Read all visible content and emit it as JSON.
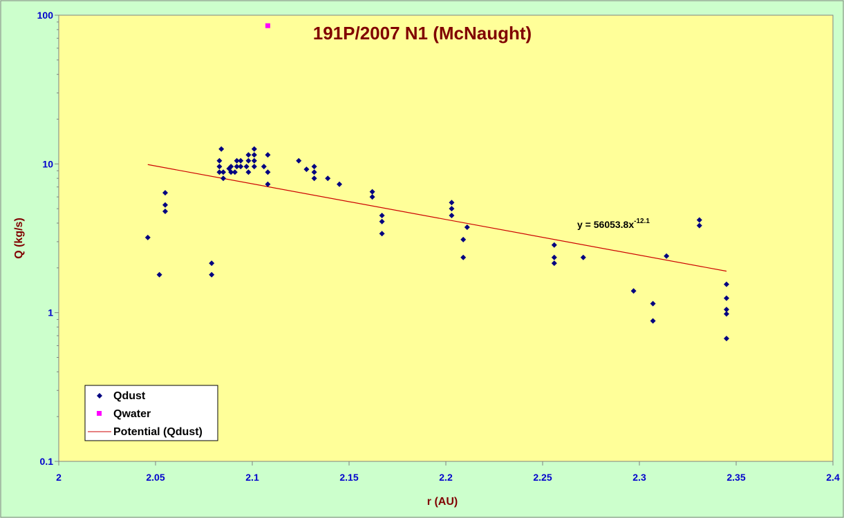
{
  "chart_data": {
    "type": "scatter",
    "title": "191P/2007 N1 (McNaught)",
    "xlabel": "r (AU)",
    "ylabel": "Q (kg/s)",
    "xlim": [
      2,
      2.4
    ],
    "ylim": [
      0.1,
      100
    ],
    "yscale": "log",
    "x_ticks": [
      "2",
      "2.05",
      "2.1",
      "2.15",
      "2.2",
      "2.25",
      "2.3",
      "2.35",
      "2.4"
    ],
    "y_ticks": [
      "0.1",
      "1",
      "10",
      "100"
    ],
    "grid": false,
    "legend_position": "bottom-left",
    "colors": {
      "plot_bg": "#ffff99",
      "page_bg": "#ccffcc",
      "qdust": "#000080",
      "qwater": "#ff00ff",
      "trend": "#cc0000"
    },
    "series": [
      {
        "name": "Qdust",
        "marker": "diamond",
        "points": [
          [
            2.046,
            3.2
          ],
          [
            2.052,
            1.8
          ],
          [
            2.055,
            6.4
          ],
          [
            2.055,
            5.3
          ],
          [
            2.055,
            4.8
          ],
          [
            2.079,
            2.15
          ],
          [
            2.079,
            1.8
          ],
          [
            2.083,
            10.5
          ],
          [
            2.083,
            9.6
          ],
          [
            2.083,
            8.8
          ],
          [
            2.084,
            12.6
          ],
          [
            2.085,
            8.8
          ],
          [
            2.085,
            8.0
          ],
          [
            2.088,
            9.3
          ],
          [
            2.089,
            9.6
          ],
          [
            2.089,
            8.8
          ],
          [
            2.091,
            8.8
          ],
          [
            2.092,
            10.5
          ],
          [
            2.092,
            9.6
          ],
          [
            2.094,
            10.5
          ],
          [
            2.094,
            9.6
          ],
          [
            2.097,
            9.6
          ],
          [
            2.098,
            11.5
          ],
          [
            2.098,
            10.5
          ],
          [
            2.098,
            8.8
          ],
          [
            2.101,
            12.6
          ],
          [
            2.101,
            11.5
          ],
          [
            2.101,
            10.5
          ],
          [
            2.101,
            9.6
          ],
          [
            2.106,
            9.6
          ],
          [
            2.108,
            11.5
          ],
          [
            2.108,
            8.8
          ],
          [
            2.108,
            7.3
          ],
          [
            2.124,
            10.5
          ],
          [
            2.128,
            9.2
          ],
          [
            2.132,
            9.6
          ],
          [
            2.132,
            8.8
          ],
          [
            2.132,
            8.0
          ],
          [
            2.139,
            8.0
          ],
          [
            2.145,
            7.3
          ],
          [
            2.162,
            6.5
          ],
          [
            2.162,
            6.0
          ],
          [
            2.167,
            4.5
          ],
          [
            2.167,
            4.1
          ],
          [
            2.167,
            3.4
          ],
          [
            2.203,
            5.5
          ],
          [
            2.203,
            5.0
          ],
          [
            2.203,
            4.5
          ],
          [
            2.209,
            3.1
          ],
          [
            2.209,
            2.35
          ],
          [
            2.211,
            3.75
          ],
          [
            2.256,
            2.85
          ],
          [
            2.256,
            2.35
          ],
          [
            2.256,
            2.15
          ],
          [
            2.271,
            2.35
          ],
          [
            2.297,
            1.4
          ],
          [
            2.307,
            1.15
          ],
          [
            2.307,
            0.88
          ],
          [
            2.314,
            2.4
          ],
          [
            2.331,
            4.2
          ],
          [
            2.331,
            3.85
          ],
          [
            2.345,
            1.55
          ],
          [
            2.345,
            1.25
          ],
          [
            2.345,
            1.05
          ],
          [
            2.345,
            0.98
          ],
          [
            2.345,
            0.67
          ]
        ]
      },
      {
        "name": "Qwater",
        "marker": "square",
        "points": [
          [
            2.108,
            85
          ]
        ]
      },
      {
        "name": "Potential (Qdust)",
        "type": "power-trendline",
        "coefficient": 56053.8,
        "exponent": -12.1,
        "x_range": [
          2.046,
          2.345
        ],
        "endpoints": [
          [
            2.046,
            9.9
          ],
          [
            2.345,
            1.9
          ]
        ],
        "equation_label": {
          "base": "y = 56053.8x",
          "exponent": "-12.1"
        }
      }
    ]
  }
}
